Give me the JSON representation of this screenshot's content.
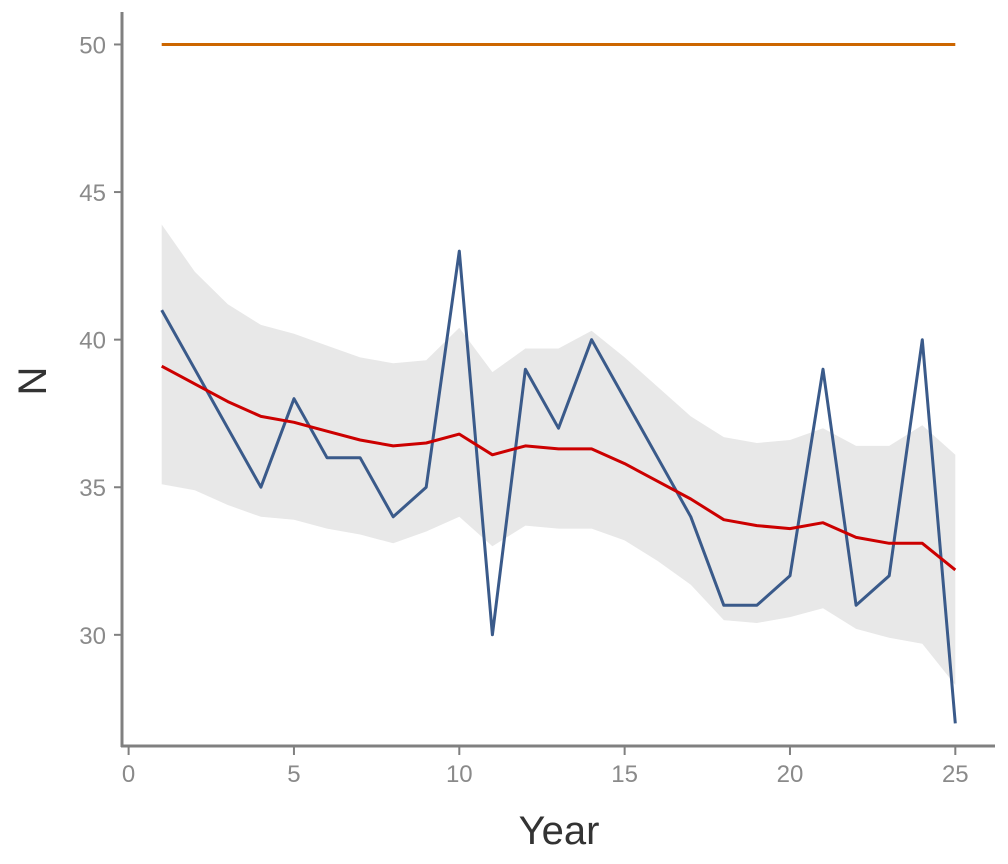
{
  "chart_data": {
    "type": "line",
    "xlabel": "Year",
    "ylabel": "N",
    "xlim": [
      -0.2,
      26.2
    ],
    "ylim": [
      26.2,
      51.1
    ],
    "xticks": [
      0,
      5,
      10,
      15,
      20,
      25
    ],
    "yticks": [
      30,
      35,
      40,
      45,
      50
    ],
    "grid": false,
    "legend": "none",
    "x": [
      1,
      2,
      3,
      4,
      5,
      6,
      7,
      8,
      9,
      10,
      11,
      12,
      13,
      14,
      15,
      16,
      17,
      18,
      19,
      20,
      21,
      22,
      23,
      24,
      25
    ],
    "series": [
      {
        "color": "#cc6600",
        "values": [
          50,
          50,
          50,
          50,
          50,
          50,
          50,
          50,
          50,
          50,
          50,
          50,
          50,
          50,
          50,
          50,
          50,
          50,
          50,
          50,
          50,
          50,
          50,
          50,
          50
        ]
      },
      {
        "color": "#3a5a8a",
        "values": [
          41,
          39,
          37,
          35,
          38,
          36,
          36,
          34,
          35,
          43,
          30,
          39,
          37,
          40,
          38,
          36,
          34,
          31,
          31,
          32,
          39,
          31,
          32,
          40,
          27
        ]
      },
      {
        "color": "#cc0000",
        "values": [
          39.1,
          38.5,
          37.9,
          37.4,
          37.2,
          36.9,
          36.6,
          36.4,
          36.5,
          36.8,
          36.1,
          36.4,
          36.3,
          36.3,
          35.8,
          35.2,
          34.6,
          33.9,
          33.7,
          33.6,
          33.8,
          33.3,
          33.1,
          33.1,
          32.2
        ]
      }
    ],
    "band": {
      "color": "#e8e8e8",
      "lower": [
        35.1,
        34.9,
        34.4,
        34.0,
        33.9,
        33.6,
        33.4,
        33.1,
        33.5,
        34.0,
        33.0,
        33.7,
        33.6,
        33.6,
        33.2,
        32.5,
        31.7,
        30.5,
        30.4,
        30.6,
        30.9,
        30.2,
        29.9,
        29.7,
        28.3
      ],
      "upper": [
        43.9,
        42.3,
        41.2,
        40.5,
        40.2,
        39.8,
        39.4,
        39.2,
        39.3,
        40.4,
        38.9,
        39.7,
        39.7,
        40.3,
        39.4,
        38.4,
        37.4,
        36.7,
        36.5,
        36.6,
        37.0,
        36.4,
        36.4,
        37.1,
        36.1
      ]
    }
  }
}
